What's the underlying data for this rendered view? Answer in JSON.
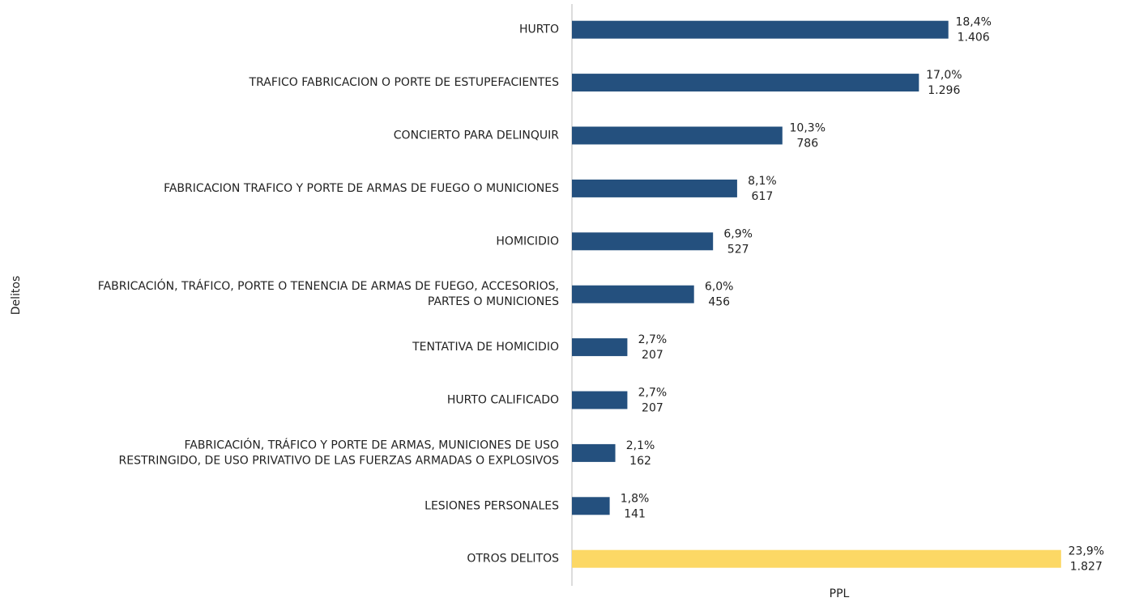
{
  "chart_data": {
    "type": "barh",
    "y_label": "Delitos",
    "x_label": "PPL",
    "categories": [
      [
        "HURTO"
      ],
      [
        "TRAFICO FABRICACION O PORTE DE ESTUPEFACIENTES"
      ],
      [
        "CONCIERTO PARA DELINQUIR"
      ],
      [
        "FABRICACION TRAFICO Y PORTE DE ARMAS DE FUEGO O MUNICIONES"
      ],
      [
        "HOMICIDIO"
      ],
      [
        "FABRICACIÓN, TRÁFICO, PORTE O TENENCIA DE ARMAS DE FUEGO, ACCESORIOS,",
        "PARTES O MUNICIONES"
      ],
      [
        "TENTATIVA DE HOMICIDIO"
      ],
      [
        "HURTO CALIFICADO"
      ],
      [
        "FABRICACIÓN, TRÁFICO Y PORTE DE ARMAS, MUNICIONES DE USO",
        "RESTRINGIDO, DE USO PRIVATIVO DE LAS FUERZAS ARMADAS O EXPLOSIVOS"
      ],
      [
        "LESIONES PERSONALES"
      ],
      [
        "OTROS DELITOS"
      ]
    ],
    "values": [
      1406,
      1296,
      786,
      617,
      527,
      456,
      207,
      207,
      162,
      141,
      1827
    ],
    "value_labels": [
      "1.406",
      "1.296",
      "786",
      "617",
      "527",
      "456",
      "207",
      "207",
      "162",
      "141",
      "1.827"
    ],
    "percents": [
      18.4,
      17.0,
      10.3,
      8.1,
      6.9,
      6.0,
      2.7,
      2.7,
      2.1,
      1.8,
      23.9
    ],
    "percent_labels": [
      "18,4%",
      "17,0%",
      "10,3%",
      "8,1%",
      "6,9%",
      "6,0%",
      "2,7%",
      "2,7%",
      "2,1%",
      "1,8%",
      "23,9%"
    ],
    "colors": [
      "#24507e",
      "#24507e",
      "#24507e",
      "#24507e",
      "#24507e",
      "#24507e",
      "#24507e",
      "#24507e",
      "#24507e",
      "#24507e",
      "#fcd865"
    ],
    "xlim": [
      0,
      2000
    ]
  }
}
